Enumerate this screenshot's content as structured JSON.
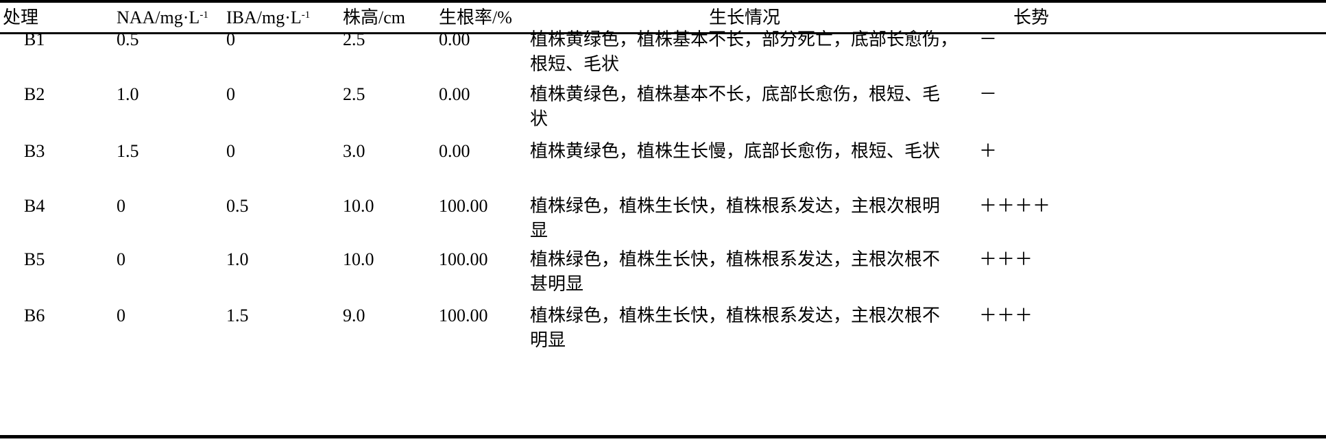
{
  "table": {
    "headers": {
      "treatment": "处理",
      "naa": "NAA/mg·L",
      "naa_sup": "-1",
      "iba": "IBA/mg·L",
      "iba_sup": "-1",
      "height": "株高/cm",
      "rooting": "生根率/%",
      "growth": "生长情况",
      "vigor": "长势"
    },
    "rows": [
      {
        "id": "B1",
        "naa": "0.5",
        "iba": "0",
        "height": "2.5",
        "rooting": "0.00",
        "growth": [
          "植株黄绿色，植株基本不长，部分死亡，底部长愈伤，",
          "根短、毛状"
        ],
        "vigor": "－"
      },
      {
        "id": "B2",
        "naa": "1.0",
        "iba": "0",
        "height": "2.5",
        "rooting": "0.00",
        "growth": [
          "植株黄绿色，植株基本不长，底部长愈伤，根短、毛",
          "状"
        ],
        "vigor": "－"
      },
      {
        "id": "B3",
        "naa": "1.5",
        "iba": "0",
        "height": "3.0",
        "rooting": "0.00",
        "growth": [
          "植株黄绿色，植株生长慢，底部长愈伤，根短、毛状"
        ],
        "vigor": "＋"
      },
      {
        "id": "B4",
        "naa": "0",
        "iba": "0.5",
        "height": "10.0",
        "rooting": "100.00",
        "growth": [
          "植株绿色，植株生长快，植株根系发达，主根次根明",
          "显"
        ],
        "vigor": "＋＋＋＋"
      },
      {
        "id": "B5",
        "naa": "0",
        "iba": "1.0",
        "height": "10.0",
        "rooting": "100.00",
        "growth": [
          "植株绿色，植株生长快，植株根系发达，主根次根不",
          "甚明显"
        ],
        "vigor": "＋＋＋"
      },
      {
        "id": "B6",
        "naa": "0",
        "iba": "1.5",
        "height": "9.0",
        "rooting": "100.00",
        "growth": [
          "植株绿色，植株生长快，植株根系发达，主根次根不",
          "明显"
        ],
        "vigor": "＋＋＋"
      }
    ]
  }
}
